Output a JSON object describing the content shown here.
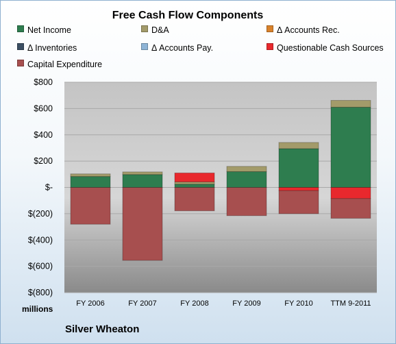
{
  "chart_data": {
    "type": "bar",
    "stacked": true,
    "title": "Free Cash Flow Components",
    "units_label": "millions",
    "ylim": [
      -800,
      800
    ],
    "yticks": [
      800,
      600,
      400,
      200,
      0,
      -200,
      -400,
      -600,
      -800
    ],
    "ytick_labels": [
      "$800",
      "$600",
      "$400",
      "$200",
      "$-",
      "$(200)",
      "$(400)",
      "$(600)",
      "$(800)"
    ],
    "categories": [
      "FY 2006",
      "FY 2007",
      "FY 2008",
      "FY 2009",
      "FY 2010",
      "TTM 9-2011"
    ],
    "legend_position": "top",
    "series": [
      {
        "name": "Net Income",
        "color": "#2e7d4f",
        "values": [
          83,
          98,
          25,
          120,
          295,
          610
        ]
      },
      {
        "name": "D&A",
        "color": "#a39b6a",
        "values": [
          20,
          20,
          17,
          40,
          47,
          52
        ]
      },
      {
        "name": "Δ Accounts Rec.",
        "color": "#d9822b",
        "values": [
          0,
          0,
          0,
          0,
          0,
          0
        ]
      },
      {
        "name": "Δ Inventories",
        "color": "#3b4e63",
        "values": [
          0,
          0,
          0,
          0,
          0,
          0
        ]
      },
      {
        "name": "Δ Accounts Pay.",
        "color": "#8eb4d6",
        "values": [
          0,
          0,
          0,
          0,
          0,
          0
        ]
      },
      {
        "name": "Questionable Cash Sources",
        "color": "#e8282d",
        "values": [
          0,
          0,
          68,
          0,
          -25,
          -85
        ]
      },
      {
        "name": "Capital Expenditure",
        "color": "#a74f4f",
        "values": [
          -280,
          -555,
          -178,
          -215,
          -175,
          -150
        ]
      }
    ]
  },
  "footer": {
    "company": "Silver Wheaton"
  }
}
